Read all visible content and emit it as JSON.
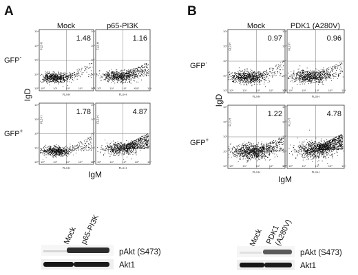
{
  "panels": [
    {
      "letter": "A",
      "columns": [
        "Mock",
        "p65-PI3K"
      ],
      "rows": [
        "GFP",
        "GFP"
      ],
      "row_superscripts": [
        "-",
        "+"
      ],
      "y_axis_label": "IgD",
      "x_axis_label": "IgM",
      "plot_y_label": "FL2-H",
      "plot_x_label": "FL4-H",
      "blot": {
        "lanes": [
          "Mock",
          "p65-PI3K"
        ],
        "bands": [
          "pAkt (S473)",
          "Akt1"
        ]
      }
    },
    {
      "letter": "B",
      "columns": [
        "Mock",
        "PDK1 (A280V)"
      ],
      "rows": [
        "GFP",
        "GFP"
      ],
      "row_superscripts": [
        "-",
        "+"
      ],
      "y_axis_label": "IgD",
      "x_axis_label": "IgM",
      "plot_y_label": "FL2-H",
      "plot_x_label": "FL4-H",
      "blot": {
        "lanes": [
          "Mock",
          "PDK1",
          "(A280V)"
        ],
        "bands": [
          "pAkt (S473)",
          "Akt1"
        ]
      }
    }
  ],
  "chart_data": [
    {
      "type": "scatter",
      "panel": "A",
      "column": "Mock",
      "row": "GFP-",
      "quadrant_percent": "1.48",
      "xlabel": "FL4-H",
      "ylabel": "FL2-H",
      "xlim": [
        1,
        10000
      ],
      "ylim": [
        1,
        10000
      ],
      "x_scale": "log",
      "y_scale": "log",
      "x_ticks": [
        "10⁰",
        "10¹",
        "10²",
        "10³",
        "10⁴"
      ],
      "y_ticks": [
        "10⁰",
        "10¹",
        "10²",
        "10³",
        "10⁴"
      ]
    },
    {
      "type": "scatter",
      "panel": "A",
      "column": "p65-PI3K",
      "row": "GFP-",
      "quadrant_percent": "1.16",
      "xlabel": "FL4-H",
      "ylabel": "FL2-H",
      "xlim": [
        1,
        10000
      ],
      "ylim": [
        1,
        10000
      ],
      "x_scale": "log",
      "y_scale": "log",
      "x_ticks": [
        "10⁰",
        "10¹",
        "10²",
        "10³",
        "10⁴"
      ],
      "y_ticks": [
        "10⁰",
        "10¹",
        "10²",
        "10³",
        "10⁴"
      ]
    },
    {
      "type": "scatter",
      "panel": "A",
      "column": "Mock",
      "row": "GFP+",
      "quadrant_percent": "1.78",
      "xlabel": "FL4-H",
      "ylabel": "FL2-H",
      "xlim": [
        1,
        10000
      ],
      "ylim": [
        1,
        10000
      ],
      "x_scale": "log",
      "y_scale": "log",
      "x_ticks": [
        "10⁰",
        "10¹",
        "10²",
        "10³",
        "10⁴"
      ],
      "y_ticks": [
        "10⁰",
        "10¹",
        "10²",
        "10³",
        "10⁴"
      ]
    },
    {
      "type": "scatter",
      "panel": "A",
      "column": "p65-PI3K",
      "row": "GFP+",
      "quadrant_percent": "4.87",
      "xlabel": "FL4-H",
      "ylabel": "FL2-H",
      "xlim": [
        1,
        10000
      ],
      "ylim": [
        1,
        10000
      ],
      "x_scale": "log",
      "y_scale": "log",
      "x_ticks": [
        "10⁰",
        "10¹",
        "10²",
        "10³",
        "10⁴"
      ],
      "y_ticks": [
        "10⁰",
        "10¹",
        "10²",
        "10³",
        "10⁴"
      ]
    },
    {
      "type": "scatter",
      "panel": "B",
      "column": "Mock",
      "row": "GFP-",
      "quadrant_percent": "0.97",
      "xlabel": "FL4-H",
      "ylabel": "FL2-H",
      "xlim": [
        1,
        10000
      ],
      "ylim": [
        1,
        10000
      ],
      "x_scale": "log",
      "y_scale": "log",
      "x_ticks": [
        "10⁰",
        "10¹",
        "10²",
        "10³",
        "10⁴"
      ],
      "y_ticks": [
        "10⁰",
        "10¹",
        "10²",
        "10³",
        "10⁴"
      ]
    },
    {
      "type": "scatter",
      "panel": "B",
      "column": "PDK1 (A280V)",
      "row": "GFP-",
      "quadrant_percent": "0.96",
      "xlabel": "FL4-H",
      "ylabel": "FL2-H",
      "xlim": [
        1,
        10000
      ],
      "ylim": [
        1,
        10000
      ],
      "x_scale": "log",
      "y_scale": "log",
      "x_ticks": [
        "10⁰",
        "10¹",
        "10²",
        "10³",
        "10⁴"
      ],
      "y_ticks": [
        "10⁰",
        "10¹",
        "10²",
        "10³",
        "10⁴"
      ]
    },
    {
      "type": "scatter",
      "panel": "B",
      "column": "Mock",
      "row": "GFP+",
      "quadrant_percent": "1.22",
      "xlabel": "FL4-H",
      "ylabel": "FL2-H",
      "xlim": [
        1,
        10000
      ],
      "ylim": [
        1,
        10000
      ],
      "x_scale": "log",
      "y_scale": "log",
      "x_ticks": [
        "10⁰",
        "10¹",
        "10²",
        "10³",
        "10⁴"
      ],
      "y_ticks": [
        "10⁰",
        "10¹",
        "10²",
        "10³",
        "10⁴"
      ]
    },
    {
      "type": "scatter",
      "panel": "B",
      "column": "PDK1 (A280V)",
      "row": "GFP+",
      "quadrant_percent": "4.78",
      "xlabel": "FL4-H",
      "ylabel": "FL2-H",
      "xlim": [
        1,
        10000
      ],
      "ylim": [
        1,
        10000
      ],
      "x_scale": "log",
      "y_scale": "log",
      "x_ticks": [
        "10⁰",
        "10¹",
        "10²",
        "10³",
        "10⁴"
      ],
      "y_ticks": [
        "10⁰",
        "10¹",
        "10²",
        "10³",
        "10⁴"
      ]
    }
  ]
}
